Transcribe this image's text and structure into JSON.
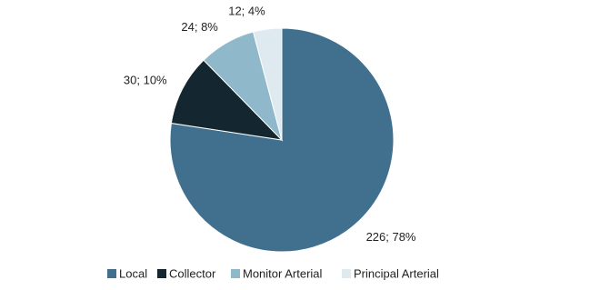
{
  "chart_data": {
    "type": "pie",
    "categories": [
      "Local",
      "Collector",
      "Monitor Arterial",
      "Principal Arterial"
    ],
    "values": [
      226,
      30,
      24,
      12
    ],
    "value_labels": [
      "226; 78%",
      "30; 10%",
      "24; 8%",
      "12; 4%"
    ],
    "colors": [
      "#41708f",
      "#14262f",
      "#8fb8ca",
      "#dfe9f0"
    ],
    "legend": "bottom"
  }
}
